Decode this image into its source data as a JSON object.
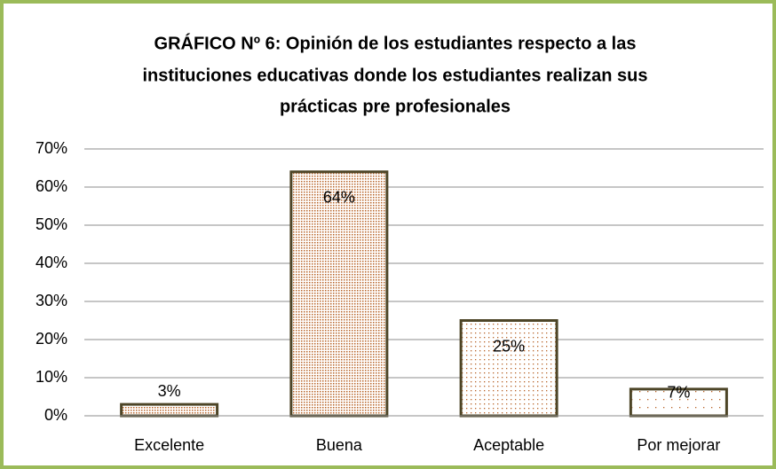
{
  "chart_data": {
    "type": "bar",
    "title": [
      "GRÁFICO Nº 6: Opinión de los estudiantes respecto a las",
      "instituciones educativas donde los estudiantes realizan sus",
      "prácticas pre profesionales"
    ],
    "categories": [
      "Excelente",
      "Buena",
      "Aceptable",
      "Por mejorar"
    ],
    "values": [
      3,
      64,
      25,
      7
    ],
    "value_labels": [
      "3%",
      "64%",
      "25%",
      "7%"
    ],
    "color": "#b8652a",
    "edgecolor": "#4d4527",
    "ylim": [
      0,
      70
    ],
    "yticks": [
      {
        "value": 0,
        "label": "0%"
      },
      {
        "value": 10,
        "label": "10%"
      },
      {
        "value": 20,
        "label": "20%"
      },
      {
        "value": 30,
        "label": "30%"
      },
      {
        "value": 40,
        "label": "40%"
      },
      {
        "value": 50,
        "label": "50%"
      },
      {
        "value": 60,
        "label": "60%"
      },
      {
        "value": 70,
        "label": "70%"
      }
    ],
    "grid": true
  }
}
